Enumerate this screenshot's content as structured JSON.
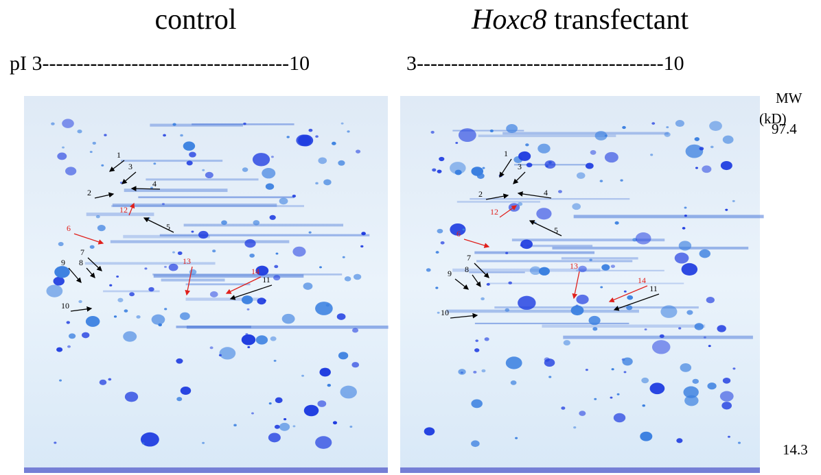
{
  "panels": [
    {
      "title": "control",
      "pi_scale": "pI 3------------------------------------10",
      "spots": [
        {
          "label": "1",
          "color": "#000"
        },
        {
          "label": "3",
          "color": "#000"
        },
        {
          "label": "4",
          "color": "#000"
        },
        {
          "label": "2",
          "color": "#000"
        },
        {
          "label": "12",
          "color": "#e0201c"
        },
        {
          "label": "5",
          "color": "#000"
        },
        {
          "label": "6",
          "color": "#e0201c"
        },
        {
          "label": "7",
          "color": "#000"
        },
        {
          "label": "8",
          "color": "#000"
        },
        {
          "label": "9",
          "color": "#000"
        },
        {
          "label": "13",
          "color": "#e0201c"
        },
        {
          "label": "14",
          "color": "#e0201c"
        },
        {
          "label": "11",
          "color": "#000"
        },
        {
          "label": "10",
          "color": "#000"
        }
      ]
    },
    {
      "title_italic": "Hoxc8",
      "title": "transfectant",
      "pi_scale": "3------------------------------------10",
      "spots": [
        {
          "label": "1",
          "color": "#000"
        },
        {
          "label": "3",
          "color": "#000"
        },
        {
          "label": "4",
          "color": "#000"
        },
        {
          "label": "2",
          "color": "#000"
        },
        {
          "label": "12",
          "color": "#e0201c"
        },
        {
          "label": "5",
          "color": "#000"
        },
        {
          "label": "6",
          "color": "#e0201c"
        },
        {
          "label": "7",
          "color": "#000"
        },
        {
          "label": "8",
          "color": "#000"
        },
        {
          "label": "9",
          "color": "#000"
        },
        {
          "label": "13",
          "color": "#e0201c"
        },
        {
          "label": "14",
          "color": "#e0201c"
        },
        {
          "label": "11",
          "color": "#000"
        },
        {
          "label": "10",
          "color": "#000"
        }
      ]
    }
  ],
  "mw": {
    "title": "MW",
    "unit": "(kD)",
    "top": "97.4",
    "bottom": "14.3"
  }
}
